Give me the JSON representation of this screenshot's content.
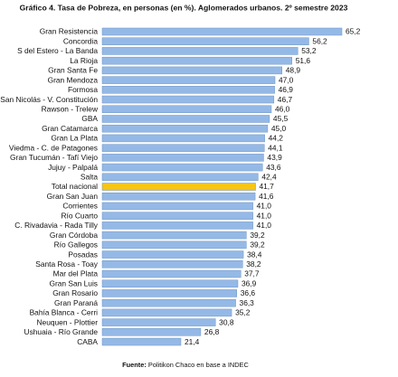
{
  "chart_data": {
    "type": "barh",
    "title": "Gráfico 4. Tasa de Pobreza, en personas (en %). Aglomerados urbanos. 2º semestre 2023",
    "categories": [
      "Gran Resistencia",
      "Concordia",
      "S del Estero - La Banda",
      "La Rioja",
      "Gran Santa Fe",
      "Gran Mendoza",
      "Formosa",
      "San Nicolás - V. Constitución",
      "Rawson - Trelew",
      "GBA",
      "Gran Catamarca",
      "Gran La Plata",
      "Viedma - C. de Patagones",
      "Gran Tucumán - Tafí Viejo",
      "Jujuy - Palpalá",
      "Salta",
      "Total nacional",
      "Gran San Juan",
      "Corrientes",
      "Río Cuarto",
      "C. Rivadavia - Rada Tilly",
      "Gran Córdoba",
      "Río Gallegos",
      "Posadas",
      "Santa Rosa - Toay",
      "Mar del Plata",
      "Gran San Luis",
      "Gran Rosario",
      "Gran Paraná",
      "Bahía Blanca - Cerri",
      "Neuquen - Plottier",
      "Ushuaia - Río Grande",
      "CABA"
    ],
    "values": [
      65.2,
      56.2,
      53.2,
      51.6,
      48.9,
      47.0,
      46.9,
      46.7,
      46.0,
      45.5,
      45.0,
      44.2,
      44.1,
      43.9,
      43.6,
      42.4,
      41.7,
      41.6,
      41.0,
      41.0,
      41.0,
      39.2,
      39.2,
      38.4,
      38.2,
      37.7,
      36.9,
      36.6,
      36.3,
      35.2,
      30.8,
      26.8,
      21.4
    ],
    "value_labels": [
      "65,2",
      "56,2",
      "53,2",
      "51,6",
      "48,9",
      "47,0",
      "46,9",
      "46,7",
      "46,0",
      "45,5",
      "45,0",
      "44,2",
      "44,1",
      "43,9",
      "43,6",
      "42,4",
      "41,7",
      "41,6",
      "41,0",
      "41,0",
      "41,0",
      "39,2",
      "39,2",
      "38,4",
      "38,2",
      "37,7",
      "36,9",
      "36,6",
      "36,3",
      "35,2",
      "30,8",
      "26,8",
      "21,4"
    ],
    "color": "#95b9e6",
    "highlight": {
      "index": 16,
      "color": "#f5c518"
    },
    "source_label": "Fuente:",
    "source_text": "Politikon Chaco en base a INDEC"
  }
}
